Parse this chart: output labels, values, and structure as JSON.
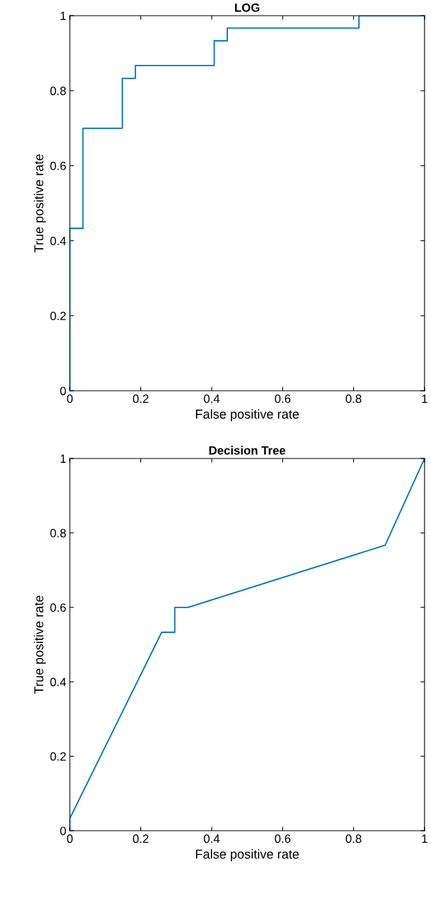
{
  "chart_data": [
    {
      "type": "line",
      "title": "LOG",
      "xlabel": "False positive rate",
      "ylabel": "True positive rate",
      "series": [
        {
          "color": "#0072bd",
          "x": [
            0,
            0,
            0.037,
            0.037,
            0.148,
            0.148,
            0.185,
            0.185,
            0.407,
            0.407,
            0.444,
            0.444,
            0.815,
            0.815,
            1
          ],
          "values": [
            0,
            0.433,
            0.433,
            0.7,
            0.7,
            0.833,
            0.833,
            0.867,
            0.867,
            0.933,
            0.933,
            0.967,
            0.967,
            1,
            1
          ]
        }
      ],
      "xlim": [
        0,
        1
      ],
      "ylim": [
        0,
        1
      ],
      "xticks": [
        0,
        0.2,
        0.4,
        0.6,
        0.8,
        1
      ],
      "yticks": [
        0,
        0.2,
        0.4,
        0.6,
        0.8,
        1
      ]
    },
    {
      "type": "line",
      "title": "Decision Tree",
      "xlabel": "False positive rate",
      "ylabel": "True positive rate",
      "series": [
        {
          "color": "#0072bd",
          "x": [
            0,
            0,
            0.259,
            0.296,
            0.296,
            0.333,
            0.889,
            1
          ],
          "values": [
            0,
            0.033,
            0.533,
            0.533,
            0.6,
            0.6,
            0.767,
            1
          ]
        }
      ],
      "xlim": [
        0,
        1
      ],
      "ylim": [
        0,
        1
      ],
      "xticks": [
        0,
        0.2,
        0.4,
        0.6,
        0.8,
        1
      ],
      "yticks": [
        0,
        0.2,
        0.4,
        0.6,
        0.8,
        1
      ]
    }
  ]
}
